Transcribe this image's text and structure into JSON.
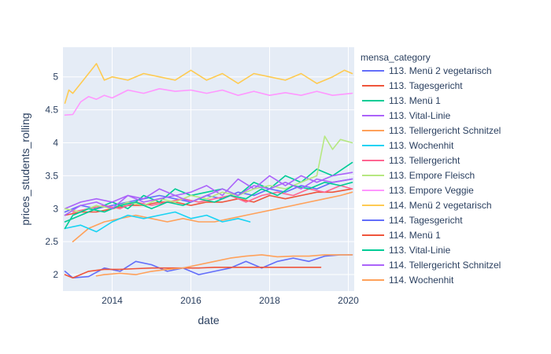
{
  "chart_data": {
    "type": "line",
    "xlabel": "date",
    "ylabel": "prices_students_rolling",
    "xlim": [
      2012.75,
      2020.15
    ],
    "ylim": [
      1.75,
      5.45
    ],
    "x_ticks": [
      2014,
      2016,
      2018,
      2020
    ],
    "x_tick_labels": [
      "2014",
      "2016",
      "2018",
      "2020"
    ],
    "y_ticks": [
      2,
      2.5,
      3,
      3.5,
      4,
      4.5,
      5
    ],
    "y_tick_labels": [
      "2",
      "2.5",
      "3",
      "3.5",
      "4",
      "4.5",
      "5"
    ],
    "grid": true,
    "legend": {
      "title": "mensa_category",
      "placement": "right"
    },
    "series": [
      {
        "name": "113. Menü 2 vegetarisch",
        "color": "#636efa",
        "x": [
          2012.8,
          2013.2,
          2013.6,
          2014.0,
          2014.4,
          2014.8,
          2015.2,
          2015.6,
          2016.0,
          2016.4,
          2016.8,
          2017.2,
          2017.6,
          2018.0,
          2018.4,
          2018.8,
          2019.2,
          2019.6,
          2020.1
        ],
        "y": [
          2.95,
          3.05,
          3.0,
          3.05,
          3.1,
          3.15,
          3.2,
          3.15,
          3.1,
          3.2,
          3.15,
          3.25,
          3.2,
          3.3,
          3.25,
          3.35,
          3.3,
          3.4,
          3.45
        ]
      },
      {
        "name": "113. Tagesgericht",
        "color": "#ef553b",
        "x": [
          2012.8,
          2013.2,
          2013.6,
          2014.0,
          2014.4,
          2014.8,
          2015.2,
          2015.6,
          2016.0,
          2016.4,
          2016.8,
          2017.2,
          2017.6,
          2018.0,
          2018.4,
          2018.8,
          2019.2,
          2019.6,
          2020.1
        ],
        "y": [
          2.9,
          2.95,
          2.95,
          3.0,
          3.05,
          3.05,
          3.1,
          3.1,
          3.05,
          3.1,
          3.1,
          3.15,
          3.1,
          3.2,
          3.15,
          3.2,
          3.25,
          3.25,
          3.3
        ]
      },
      {
        "name": "113. Menü 1",
        "color": "#00cc96",
        "x": [
          2012.8,
          2013.2,
          2013.6,
          2014.0,
          2014.4,
          2014.8,
          2015.2,
          2015.6,
          2016.0,
          2016.4,
          2016.8,
          2017.2,
          2017.6,
          2018.0,
          2018.4,
          2018.8,
          2019.2,
          2019.6,
          2020.1
        ],
        "y": [
          2.8,
          2.9,
          3.0,
          3.1,
          3.0,
          3.2,
          3.1,
          3.3,
          3.2,
          3.25,
          3.3,
          3.2,
          3.4,
          3.3,
          3.5,
          3.4,
          3.6,
          3.5,
          3.7
        ]
      },
      {
        "name": "113. Vital-Linie",
        "color": "#ab63fa",
        "x": [
          2012.8,
          2013.2,
          2013.6,
          2014.0,
          2014.4,
          2014.8,
          2015.2,
          2015.6,
          2016.0,
          2016.4,
          2016.8,
          2017.2,
          2017.6,
          2018.0,
          2018.4,
          2018.8,
          2019.2,
          2019.6,
          2020.1
        ],
        "y": [
          3.0,
          3.1,
          3.15,
          3.1,
          3.2,
          3.15,
          3.3,
          3.2,
          3.25,
          3.35,
          3.2,
          3.45,
          3.3,
          3.5,
          3.35,
          3.5,
          3.4,
          3.5,
          3.55
        ]
      },
      {
        "name": "113. Tellergericht Schnitzel",
        "color": "#ffa15a",
        "x": [
          2013.0,
          2013.4,
          2013.8,
          2014.2,
          2014.6,
          2015.0,
          2015.4,
          2015.8,
          2016.2,
          2016.6,
          2017.0,
          2017.4,
          2017.8,
          2018.2,
          2018.6,
          2019.0,
          2019.4,
          2019.8,
          2020.1
        ],
        "y": [
          2.5,
          2.7,
          2.8,
          2.85,
          2.9,
          2.85,
          2.8,
          2.85,
          2.8,
          2.8,
          2.85,
          2.9,
          2.95,
          3.0,
          3.05,
          3.1,
          3.15,
          3.2,
          3.25
        ]
      },
      {
        "name": "113. Wochenhit",
        "color": "#19d3f3",
        "x": [
          2012.8,
          2013.2,
          2013.6,
          2014.0,
          2014.4,
          2014.8,
          2015.2,
          2015.6,
          2016.0,
          2016.4,
          2016.8,
          2017.2,
          2017.5
        ],
        "y": [
          2.7,
          2.75,
          2.65,
          2.8,
          2.9,
          2.85,
          2.9,
          2.95,
          2.85,
          2.9,
          2.8,
          2.85,
          2.8
        ]
      },
      {
        "name": "113. Tellergericht",
        "color": "#ff6692",
        "x": [
          2013.0,
          2013.4,
          2013.8,
          2014.2,
          2014.6,
          2015.0,
          2015.4,
          2015.8,
          2016.2,
          2016.6,
          2017.0,
          2017.4,
          2017.8,
          2018.2,
          2018.6,
          2019.0,
          2019.4,
          2019.8,
          2020.1
        ],
        "y": [
          2.95,
          3.0,
          3.05,
          3.0,
          3.1,
          3.05,
          3.1,
          3.15,
          3.1,
          3.15,
          3.2,
          3.1,
          3.2,
          3.25,
          3.2,
          3.3,
          3.25,
          3.35,
          3.3
        ]
      },
      {
        "name": "113. Empore Fleisch",
        "color": "#b6e880",
        "x": [
          2012.8,
          2013.2,
          2013.6,
          2014.0,
          2014.4,
          2014.8,
          2015.2,
          2015.6,
          2016.0,
          2016.4,
          2016.8,
          2017.2,
          2017.6,
          2018.0,
          2018.4,
          2018.8,
          2019.2,
          2019.4,
          2019.6,
          2019.8,
          2020.1
        ],
        "y": [
          3.0,
          2.95,
          3.05,
          3.0,
          3.1,
          3.05,
          3.15,
          3.1,
          3.2,
          3.15,
          3.25,
          3.2,
          3.3,
          3.35,
          3.3,
          3.4,
          3.5,
          4.1,
          3.9,
          4.05,
          4.0
        ]
      },
      {
        "name": "113. Empore Veggie",
        "color": "#ff97ff",
        "x": [
          2012.8,
          2013.0,
          2013.2,
          2013.4,
          2013.6,
          2013.8,
          2014.0,
          2014.4,
          2014.8,
          2015.2,
          2015.6,
          2016.0,
          2016.4,
          2016.8,
          2017.2,
          2017.6,
          2018.0,
          2018.4,
          2018.8,
          2019.2,
          2019.6,
          2020.1
        ],
        "y": [
          4.42,
          4.43,
          4.62,
          4.7,
          4.66,
          4.72,
          4.68,
          4.8,
          4.75,
          4.82,
          4.78,
          4.8,
          4.75,
          4.8,
          4.72,
          4.78,
          4.72,
          4.76,
          4.72,
          4.78,
          4.72,
          4.75
        ]
      },
      {
        "name": "114. Menü 2 vegetarisch",
        "color": "#fecb52",
        "x": [
          2012.8,
          2012.9,
          2013.0,
          2013.2,
          2013.4,
          2013.6,
          2013.8,
          2014.0,
          2014.4,
          2014.8,
          2015.2,
          2015.6,
          2016.0,
          2016.4,
          2016.8,
          2017.2,
          2017.6,
          2018.0,
          2018.4,
          2018.8,
          2019.2,
          2019.6,
          2019.9,
          2020.1
        ],
        "y": [
          4.6,
          4.8,
          4.75,
          4.9,
          5.05,
          5.2,
          4.95,
          5.0,
          4.95,
          5.05,
          5.0,
          4.95,
          5.1,
          4.95,
          5.05,
          4.9,
          5.05,
          5.0,
          4.95,
          5.05,
          4.9,
          5.0,
          5.1,
          5.05
        ]
      },
      {
        "name": "114. Tagesgericht",
        "color": "#636efa",
        "x": [
          2012.8,
          2013.0,
          2013.4,
          2013.8,
          2014.2,
          2014.6,
          2015.0,
          2015.4,
          2015.8,
          2016.2,
          2016.6,
          2017.0,
          2017.4,
          2017.8,
          2018.2,
          2018.6,
          2019.0,
          2019.4,
          2019.8,
          2020.1
        ],
        "y": [
          2.05,
          1.95,
          1.97,
          2.1,
          2.05,
          2.2,
          2.15,
          2.05,
          2.1,
          2.0,
          2.05,
          2.1,
          2.2,
          2.1,
          2.2,
          2.25,
          2.2,
          2.28,
          2.3,
          2.3
        ]
      },
      {
        "name": "114. Menü 1",
        "color": "#ef553b",
        "x": [
          2012.8,
          2013.0,
          2013.4,
          2013.8,
          2014.2,
          2014.6,
          2015.0,
          2015.4,
          2015.8,
          2016.2,
          2016.6,
          2017.0,
          2017.4,
          2017.8,
          2018.2,
          2018.6,
          2019.0,
          2019.3
        ],
        "y": [
          2.0,
          1.95,
          2.05,
          2.08,
          2.08,
          2.09,
          2.1,
          2.1,
          2.1,
          2.1,
          2.11,
          2.11,
          2.11,
          2.11,
          2.11,
          2.11,
          2.11,
          2.11
        ]
      },
      {
        "name": "113. Vital-Linie",
        "color": "#00cc96",
        "x": [
          2012.8,
          2013.0,
          2013.4,
          2013.8,
          2014.2,
          2014.6,
          2015.0,
          2015.4,
          2015.8,
          2016.2,
          2016.6,
          2017.0,
          2017.4,
          2017.8,
          2018.2,
          2018.6,
          2019.0,
          2019.4,
          2019.8,
          2020.1
        ],
        "y": [
          2.7,
          2.9,
          3.0,
          2.95,
          3.05,
          3.1,
          3.0,
          3.1,
          3.05,
          3.15,
          3.1,
          3.2,
          3.15,
          3.3,
          3.2,
          3.35,
          3.3,
          3.4,
          3.35,
          3.4
        ]
      },
      {
        "name": "114. Tellergericht Schnitzel",
        "color": "#ab63fa",
        "x": [
          2012.8,
          2013.2,
          2013.6,
          2014.0,
          2014.4,
          2014.8,
          2015.2,
          2015.6,
          2016.0,
          2016.4,
          2016.8,
          2017.2,
          2017.6,
          2018.0,
          2018.4,
          2018.8,
          2019.2,
          2019.6,
          2020.1
        ],
        "y": [
          2.9,
          3.05,
          3.1,
          3.0,
          3.2,
          3.1,
          3.15,
          3.2,
          3.1,
          3.2,
          3.3,
          3.2,
          3.35,
          3.3,
          3.4,
          3.3,
          3.45,
          3.4,
          3.45
        ]
      },
      {
        "name": "114. Wochenhit",
        "color": "#ffa15a",
        "x": [
          2013.6,
          2013.8,
          2014.2,
          2014.6,
          2015.0,
          2015.4,
          2015.8,
          2016.2,
          2016.6,
          2017.0,
          2017.4,
          2017.8,
          2018.2,
          2018.6,
          2019.0,
          2019.4,
          2019.8,
          2020.1
        ],
        "y": [
          1.98,
          2.0,
          2.02,
          2.0,
          2.05,
          2.08,
          2.1,
          2.15,
          2.2,
          2.25,
          2.28,
          2.3,
          2.27,
          2.28,
          2.28,
          2.3,
          2.3,
          2.3
        ]
      }
    ]
  }
}
